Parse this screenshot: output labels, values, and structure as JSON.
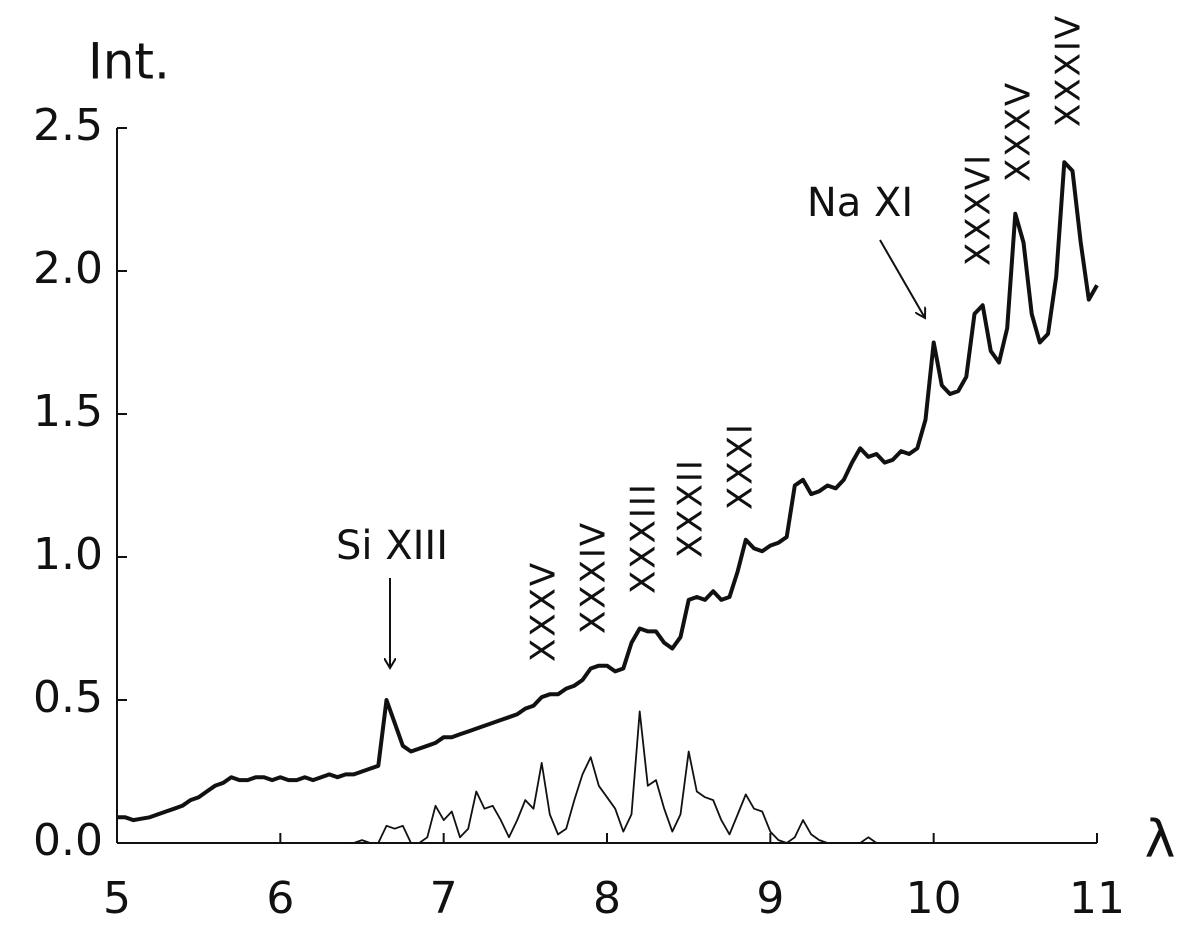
{
  "chart_data": {
    "type": "line",
    "ylabel": "Int.",
    "xlabel": "λ",
    "x": [
      5.0,
      5.05,
      5.1,
      5.15,
      5.2,
      5.25,
      5.3,
      5.35,
      5.4,
      5.45,
      5.5,
      5.55,
      5.6,
      5.65,
      5.7,
      5.75,
      5.8,
      5.85,
      5.9,
      5.95,
      6.0,
      6.05,
      6.1,
      6.15,
      6.2,
      6.25,
      6.3,
      6.35,
      6.4,
      6.45,
      6.5,
      6.55,
      6.6,
      6.65,
      6.7,
      6.75,
      6.8,
      6.85,
      6.9,
      6.95,
      7.0,
      7.05,
      7.1,
      7.15,
      7.2,
      7.25,
      7.3,
      7.35,
      7.4,
      7.45,
      7.5,
      7.55,
      7.6,
      7.65,
      7.7,
      7.75,
      7.8,
      7.85,
      7.9,
      7.95,
      8.0,
      8.05,
      8.1,
      8.15,
      8.2,
      8.25,
      8.3,
      8.35,
      8.4,
      8.45,
      8.5,
      8.55,
      8.6,
      8.65,
      8.7,
      8.75,
      8.8,
      8.85,
      8.9,
      8.95,
      9.0,
      9.05,
      9.1,
      9.15,
      9.2,
      9.25,
      9.3,
      9.35,
      9.4,
      9.45,
      9.5,
      9.55,
      9.6,
      9.65,
      9.7,
      9.75,
      9.8,
      9.85,
      9.9,
      9.95,
      10.0,
      10.05,
      10.1,
      10.15,
      10.2,
      10.25,
      10.3,
      10.35,
      10.4,
      10.45,
      10.5,
      10.55,
      10.6,
      10.65,
      10.7,
      10.75,
      10.8,
      10.85,
      10.9,
      10.95,
      11.0
    ],
    "series": [
      {
        "color": "#111111",
        "width": 4,
        "values": [
          0.09,
          0.09,
          0.08,
          0.085,
          0.09,
          0.1,
          0.11,
          0.12,
          0.13,
          0.15,
          0.16,
          0.18,
          0.2,
          0.21,
          0.23,
          0.22,
          0.22,
          0.23,
          0.23,
          0.22,
          0.23,
          0.22,
          0.22,
          0.23,
          0.22,
          0.23,
          0.24,
          0.23,
          0.24,
          0.24,
          0.25,
          0.26,
          0.27,
          0.5,
          0.42,
          0.34,
          0.32,
          0.33,
          0.34,
          0.35,
          0.37,
          0.37,
          0.38,
          0.39,
          0.4,
          0.41,
          0.42,
          0.43,
          0.44,
          0.45,
          0.47,
          0.48,
          0.51,
          0.52,
          0.52,
          0.54,
          0.55,
          0.57,
          0.61,
          0.62,
          0.62,
          0.6,
          0.61,
          0.7,
          0.75,
          0.74,
          0.74,
          0.7,
          0.68,
          0.72,
          0.85,
          0.86,
          0.85,
          0.88,
          0.85,
          0.86,
          0.95,
          1.06,
          1.03,
          1.02,
          1.04,
          1.05,
          1.07,
          1.25,
          1.27,
          1.22,
          1.23,
          1.25,
          1.24,
          1.27,
          1.33,
          1.38,
          1.35,
          1.36,
          1.33,
          1.34,
          1.37,
          1.36,
          1.38,
          1.48,
          1.75,
          1.6,
          1.57,
          1.58,
          1.63,
          1.85,
          1.88,
          1.72,
          1.68,
          1.8,
          2.2,
          2.1,
          1.85,
          1.75,
          1.78,
          1.98,
          2.38,
          2.35,
          2.1,
          1.9,
          1.95
        ]
      },
      {
        "color": "#111111",
        "width": 1.8,
        "values": [
          null,
          null,
          null,
          null,
          null,
          null,
          null,
          null,
          null,
          null,
          null,
          null,
          null,
          null,
          null,
          null,
          null,
          null,
          null,
          null,
          null,
          null,
          null,
          null,
          null,
          null,
          null,
          null,
          0,
          0,
          0.01,
          0,
          0,
          0.06,
          0.05,
          0.06,
          0,
          0,
          0.02,
          0.13,
          0.08,
          0.11,
          0.02,
          0.05,
          0.18,
          0.12,
          0.13,
          0.08,
          0.02,
          0.08,
          0.15,
          0.12,
          0.28,
          0.1,
          0.03,
          0.05,
          0.15,
          0.24,
          0.3,
          0.2,
          0.16,
          0.12,
          0.04,
          0.1,
          0.46,
          0.2,
          0.22,
          0.12,
          0.04,
          0.1,
          0.32,
          0.18,
          0.16,
          0.15,
          0.08,
          0.03,
          0.1,
          0.17,
          0.12,
          0.11,
          0.04,
          0.01,
          0,
          0.02,
          0.08,
          0.03,
          0.01,
          0,
          0,
          0,
          0,
          0,
          0.02,
          0,
          null,
          null,
          null,
          null,
          null,
          null,
          null,
          null,
          null,
          null,
          null,
          null,
          null,
          null,
          null,
          null,
          null,
          null,
          null,
          null,
          null,
          null,
          null,
          null,
          null,
          null,
          null
        ]
      }
    ],
    "xlim": [
      5,
      11
    ],
    "ylim": [
      0,
      2.5
    ],
    "xticks": [
      5,
      6,
      7,
      8,
      9,
      10,
      11
    ],
    "yticks": [
      {
        "value": 0,
        "label": "0.0"
      },
      {
        "value": 0.5,
        "label": "0.5"
      },
      {
        "value": 1,
        "label": "1.0"
      },
      {
        "value": 1.5,
        "label": "1.5"
      },
      {
        "value": 2,
        "label": "2.0"
      },
      2.5
    ],
    "annotations": [
      "Si XIII",
      "Na XI",
      "XXXV",
      "XXXIV",
      "XXXIII",
      "XXXII",
      "XXXI",
      "XXXVI",
      "XXXV",
      "XXXIV"
    ]
  }
}
